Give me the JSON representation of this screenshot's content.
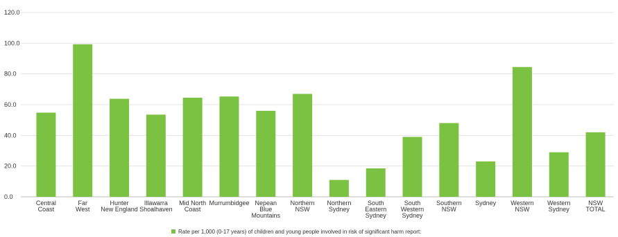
{
  "chart_data": {
    "type": "bar",
    "categories": [
      [
        "Central",
        "Coast"
      ],
      [
        "Far",
        "West"
      ],
      [
        "Hunter",
        "New England"
      ],
      [
        "Illawarra",
        "Shoalhaven"
      ],
      [
        "Mid North",
        "Coast"
      ],
      [
        "Murrumbidgee"
      ],
      [
        "Nepean",
        "Blue",
        "Mountains"
      ],
      [
        "Northern",
        "NSW"
      ],
      [
        "Northern",
        "Sydney"
      ],
      [
        "South",
        "Eastern",
        "Sydney"
      ],
      [
        "South",
        "Western",
        "Sydney"
      ],
      [
        "Southern",
        "NSW"
      ],
      [
        "Sydney"
      ],
      [
        "Western",
        "NSW"
      ],
      [
        "Western",
        "Sydney"
      ],
      [
        "NSW",
        "TOTAL"
      ]
    ],
    "series": [
      {
        "name": "Rate per 1,000 (0-17 years) of children and young people involved in risk of significant harm report:",
        "color": "#7cc242",
        "values": [
          54.8,
          99.3,
          63.8,
          53.5,
          64.5,
          65.3,
          56.0,
          67.0,
          11.0,
          18.5,
          39.0,
          48.0,
          23.0,
          84.5,
          29.0,
          42.0
        ]
      }
    ],
    "y_ticks": [
      "0.0",
      "20.0",
      "40.0",
      "60.0",
      "80.0",
      "100.0",
      "120.0"
    ],
    "ylim": [
      0,
      120
    ],
    "grid": true,
    "legend": "bottom-center",
    "title": "",
    "xlabel": "",
    "ylabel": ""
  }
}
